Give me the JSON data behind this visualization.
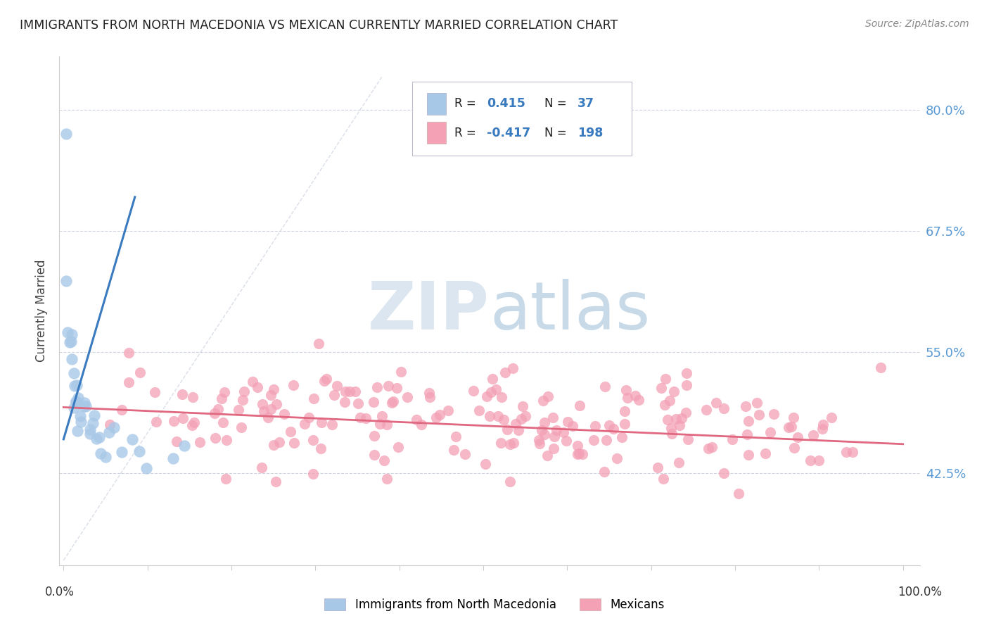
{
  "title": "IMMIGRANTS FROM NORTH MACEDONIA VS MEXICAN CURRENTLY MARRIED CORRELATION CHART",
  "source": "Source: ZipAtlas.com",
  "ylabel": "Currently Married",
  "legend1_label": "Immigrants from North Macedonia",
  "legend2_label": "Mexicans",
  "R1": 0.415,
  "N1": 37,
  "R2": -0.417,
  "N2": 198,
  "color_blue": "#a8c8e8",
  "color_pink": "#f4a0b5",
  "line_blue": "#3a7abf",
  "line_pink": "#e06880",
  "line_diag": "#c0c8d8",
  "background": "#ffffff",
  "watermark_color": "#dce6f0",
  "seed": 42,
  "ymin": 0.33,
  "ymax": 0.855,
  "xmin": -0.005,
  "xmax": 1.02,
  "ytick_values": [
    0.8,
    0.675,
    0.55,
    0.425
  ],
  "ytick_labels": [
    "80.0%",
    "67.5%",
    "55.0%",
    "42.5%"
  ]
}
